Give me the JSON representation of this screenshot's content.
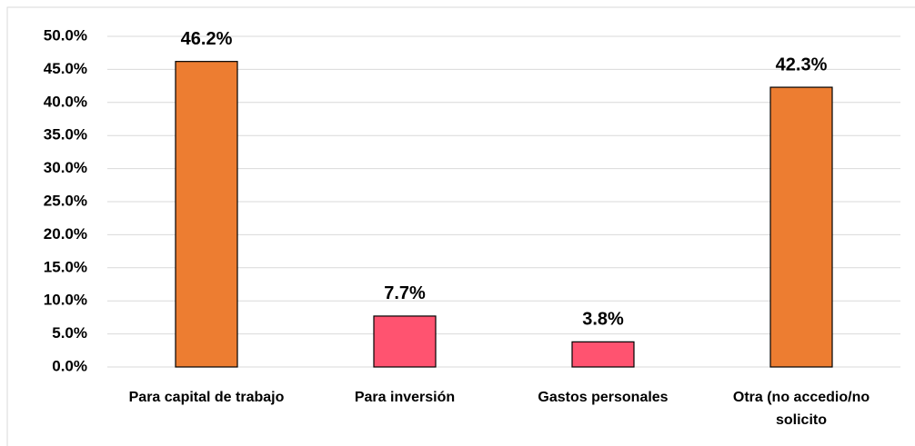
{
  "chart_data": {
    "type": "bar",
    "categories": [
      "Para capital de trabajo",
      "Para inversión",
      "Gastos personales",
      "Otra (no accedio/no solicito"
    ],
    "values": [
      46.2,
      7.7,
      3.8,
      42.3
    ],
    "value_labels": [
      "46.2%",
      "7.7%",
      "3.8%",
      "42.3%"
    ],
    "colors": [
      "#ed7d31",
      "#ff5370",
      "#ff5370",
      "#ed7d31"
    ],
    "ylim": [
      0,
      50
    ],
    "yticks": [
      {
        "value": 0,
        "label": "0.0%"
      },
      {
        "value": 5,
        "label": "5.0%"
      },
      {
        "value": 10,
        "label": "10.0%"
      },
      {
        "value": 15,
        "label": "15.0%"
      },
      {
        "value": 20,
        "label": "20.0%"
      },
      {
        "value": 25,
        "label": "25.0%"
      },
      {
        "value": 30,
        "label": "30.0%"
      },
      {
        "value": 35,
        "label": "35.0%"
      },
      {
        "value": 40,
        "label": "40.0%"
      },
      {
        "value": 45,
        "label": "45.0%"
      },
      {
        "value": 50,
        "label": "50.0%"
      }
    ],
    "grid": true
  }
}
